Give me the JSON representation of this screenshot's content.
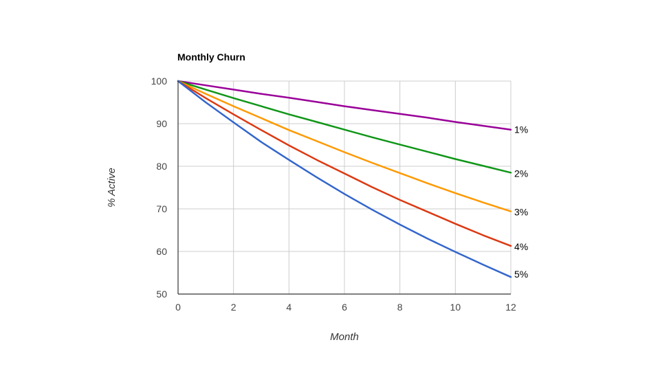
{
  "chart_data": {
    "type": "line",
    "title": "Monthly Churn",
    "xlabel": "Month",
    "ylabel": "% Active",
    "xlim": [
      0,
      12
    ],
    "ylim": [
      50,
      100
    ],
    "x_ticks": [
      "0",
      "2",
      "4",
      "6",
      "8",
      "10",
      "12"
    ],
    "y_ticks": [
      "100",
      "90",
      "80",
      "70",
      "60",
      "50"
    ],
    "grid": true,
    "legend": "none",
    "x": [
      0,
      1,
      2,
      3,
      4,
      5,
      6,
      7,
      8,
      9,
      10,
      11,
      12
    ],
    "series": [
      {
        "name": "1%",
        "color": "#990099",
        "values": [
          100,
          99.0,
          98.0,
          97.0,
          96.1,
          95.1,
          94.1,
          93.2,
          92.3,
          91.4,
          90.4,
          89.5,
          88.6
        ]
      },
      {
        "name": "2%",
        "color": "#109618",
        "values": [
          100,
          98.0,
          96.0,
          94.1,
          92.2,
          90.4,
          88.6,
          86.8,
          85.1,
          83.4,
          81.7,
          80.1,
          78.5
        ]
      },
      {
        "name": "3%",
        "color": "#ff9900",
        "values": [
          100,
          97.0,
          94.1,
          91.3,
          88.5,
          85.9,
          83.3,
          80.8,
          78.4,
          76.0,
          73.7,
          71.5,
          69.4
        ]
      },
      {
        "name": "4%",
        "color": "#dc3912",
        "values": [
          100,
          96.0,
          92.2,
          88.5,
          84.9,
          81.5,
          78.3,
          75.1,
          72.1,
          69.3,
          66.5,
          63.8,
          61.3
        ]
      },
      {
        "name": "5%",
        "color": "#3366cc",
        "values": [
          100,
          95.0,
          90.3,
          85.7,
          81.5,
          77.4,
          73.5,
          69.8,
          66.3,
          63.0,
          59.9,
          56.9,
          54.0
        ]
      }
    ]
  }
}
